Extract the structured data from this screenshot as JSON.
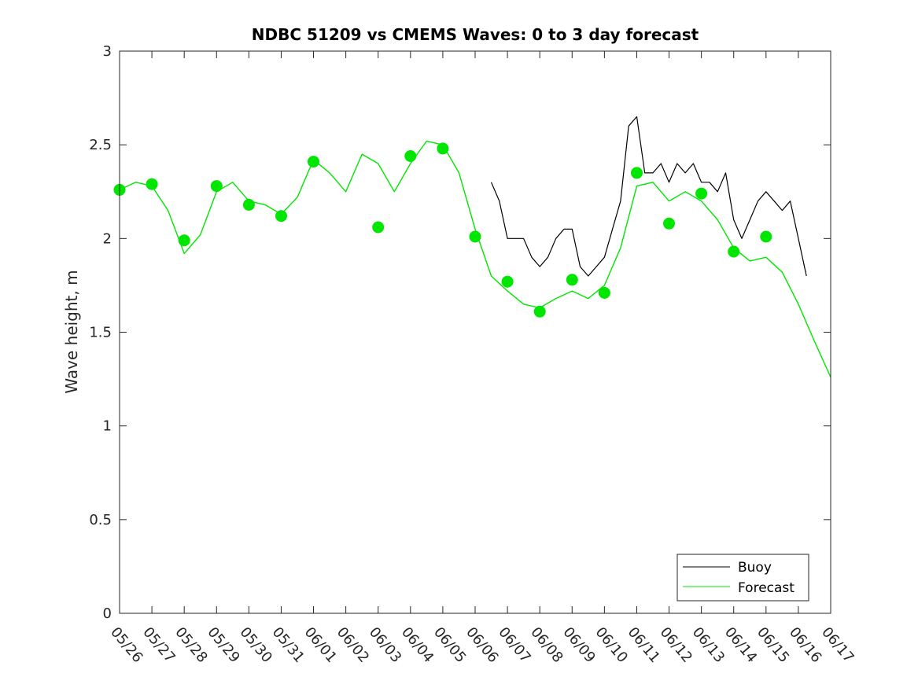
{
  "chart_data": {
    "type": "line",
    "title": "NDBC 51209 vs CMEMS Waves: 0 to 3 day forecast",
    "xlabel": "",
    "ylabel": "Wave height, m",
    "ylim": [
      0,
      3
    ],
    "yticks": [
      "0",
      "0.5",
      "1",
      "1.5",
      "2",
      "2.5",
      "3"
    ],
    "xlim": [
      "05/26",
      "06/17"
    ],
    "xticks": [
      "05/26",
      "05/27",
      "05/28",
      "05/29",
      "05/30",
      "05/31",
      "06/01",
      "06/02",
      "06/03",
      "06/04",
      "06/05",
      "06/06",
      "06/07",
      "06/08",
      "06/09",
      "06/10",
      "06/11",
      "06/12",
      "06/13",
      "06/14",
      "06/15",
      "06/16",
      "06/17"
    ],
    "legend": {
      "position": "bottom-right",
      "entries": [
        {
          "name": "Buoy",
          "color": "#000000"
        },
        {
          "name": "Forecast",
          "color": "#00e600"
        }
      ]
    },
    "grid": false,
    "series": [
      {
        "name": "Buoy",
        "color": "#000000",
        "x": [
          "06/06 12:00",
          "06/06 18:00",
          "06/07 00:00",
          "06/07 06:00",
          "06/07 12:00",
          "06/07 18:00",
          "06/08 00:00",
          "06/08 06:00",
          "06/08 12:00",
          "06/08 18:00",
          "06/09 00:00",
          "06/09 06:00",
          "06/09 12:00",
          "06/09 18:00",
          "06/10 00:00",
          "06/10 06:00",
          "06/10 12:00",
          "06/10 18:00",
          "06/11 00:00",
          "06/11 06:00",
          "06/11 12:00",
          "06/11 18:00",
          "06/12 00:00",
          "06/12 06:00",
          "06/12 12:00",
          "06/12 18:00",
          "06/13 00:00",
          "06/13 06:00",
          "06/13 12:00",
          "06/13 18:00",
          "06/14 00:00",
          "06/14 06:00",
          "06/14 12:00",
          "06/14 18:00",
          "06/15 00:00",
          "06/15 06:00",
          "06/15 12:00",
          "06/15 18:00",
          "06/16 00:00",
          "06/16 06:00"
        ],
        "y": [
          2.3,
          2.2,
          2.0,
          2.0,
          2.0,
          1.9,
          1.85,
          1.9,
          2.0,
          2.05,
          2.05,
          1.85,
          1.8,
          1.85,
          1.9,
          2.05,
          2.2,
          2.6,
          2.65,
          2.35,
          2.35,
          2.4,
          2.3,
          2.4,
          2.35,
          2.4,
          2.3,
          2.3,
          2.25,
          2.35,
          2.1,
          2.0,
          2.1,
          2.2,
          2.25,
          2.2,
          2.15,
          2.2,
          2.0,
          1.8
        ]
      },
      {
        "name": "Forecast",
        "color": "#00e600",
        "x": [
          "05/26",
          "05/26 12:00",
          "05/27",
          "05/27 12:00",
          "05/28",
          "05/28 12:00",
          "05/29",
          "05/29 12:00",
          "05/30",
          "05/30 12:00",
          "05/31",
          "05/31 12:00",
          "06/01",
          "06/01 12:00",
          "06/02",
          "06/02 12:00",
          "06/03",
          "06/03 12:00",
          "06/04",
          "06/04 12:00",
          "06/05",
          "06/05 12:00",
          "06/06",
          "06/06 12:00",
          "06/07",
          "06/07 12:00",
          "06/08",
          "06/08 12:00",
          "06/09",
          "06/09 12:00",
          "06/10",
          "06/10 12:00",
          "06/11",
          "06/11 12:00",
          "06/12",
          "06/12 12:00",
          "06/13",
          "06/13 12:00",
          "06/14",
          "06/14 12:00",
          "06/15",
          "06/15 12:00",
          "06/16",
          "06/16 12:00",
          "06/17"
        ],
        "y": [
          2.26,
          2.3,
          2.28,
          2.15,
          1.92,
          2.02,
          2.25,
          2.3,
          2.2,
          2.18,
          2.13,
          2.22,
          2.42,
          2.35,
          2.25,
          2.45,
          2.4,
          2.25,
          2.4,
          2.52,
          2.5,
          2.35,
          2.05,
          1.8,
          1.72,
          1.65,
          1.63,
          1.68,
          1.72,
          1.68,
          1.75,
          1.95,
          2.28,
          2.3,
          2.2,
          2.25,
          2.2,
          2.1,
          1.95,
          1.88,
          1.9,
          1.82,
          1.65,
          1.45,
          1.26
        ]
      },
      {
        "name": "",
        "color": "#00e600",
        "x": [
          "05/26",
          "05/27",
          "05/28",
          "05/29",
          "05/30",
          "05/31",
          "06/01",
          "06/02",
          "06/03",
          "06/04",
          "06/05",
          "06/06",
          "06/07",
          "06/08",
          "06/09",
          "06/10",
          "06/11",
          "06/12",
          "06/13",
          "06/14",
          "06/15",
          "06/16",
          "06/17"
        ],
        "y": [
          2.26,
          2.29,
          1.99,
          2.28,
          2.18,
          2.12,
          2.41,
          null,
          2.06,
          2.44,
          2.48,
          2.01,
          1.77,
          1.61,
          1.78,
          1.71,
          2.35,
          2.08,
          2.24,
          1.93,
          2.01,
          null,
          null
        ]
      }
    ]
  }
}
